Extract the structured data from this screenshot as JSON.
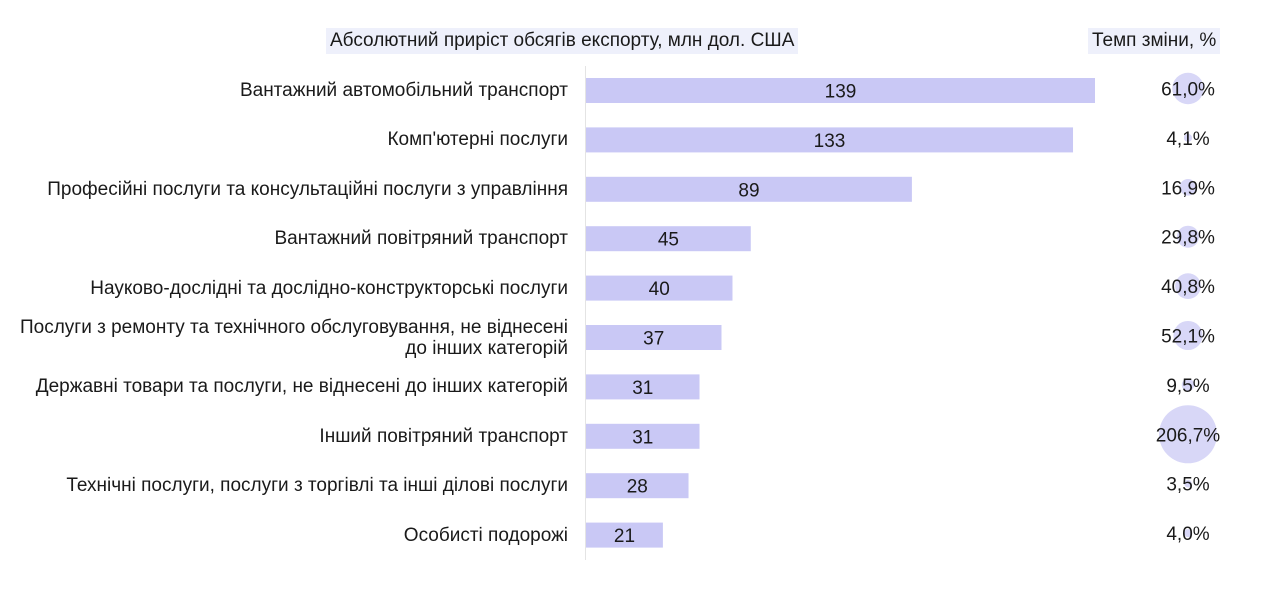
{
  "chart_data": {
    "type": "bar",
    "orientation": "horizontal",
    "title": "Абсолютний приріст обсягів експорту, млн дол. США",
    "categories": [
      "Вантажний автомобільний транспорт",
      "Комп'ютерні послуги",
      "Професійні послуги та консультаційні послуги з управління",
      "Вантажний повітряний транспорт",
      "Науково-дослідні та дослідно-конструкторські послуги",
      "Послуги з ремонту та технічного обслуговування, не віднесені до інших категорій",
      "Державні товари та послуги, не віднесені до інших категорій",
      "Інший повітряний транспорт",
      "Технічні послуги, послуги з торгівлі та інші ділові послуги",
      "Особисті подорожі"
    ],
    "values": [
      139,
      133,
      89,
      45,
      40,
      37,
      31,
      31,
      28,
      21
    ],
    "rate": {
      "title": "Темп зміни, %",
      "values": [
        61.0,
        4.1,
        16.9,
        29.8,
        40.8,
        52.1,
        9.5,
        206.7,
        3.5,
        4.0
      ],
      "labels": [
        "61,0%",
        "4,1%",
        "16,9%",
        "29,8%",
        "40,8%",
        "52,1%",
        "9,5%",
        "206,7%",
        "3,5%",
        "4,0%"
      ]
    },
    "xlim": [
      0,
      140
    ],
    "grid": false,
    "legend": "none",
    "colors": {
      "bar": "#c9c8f5",
      "bubble": "#d8d7f7",
      "title_bg": "#eef0fb"
    }
  }
}
